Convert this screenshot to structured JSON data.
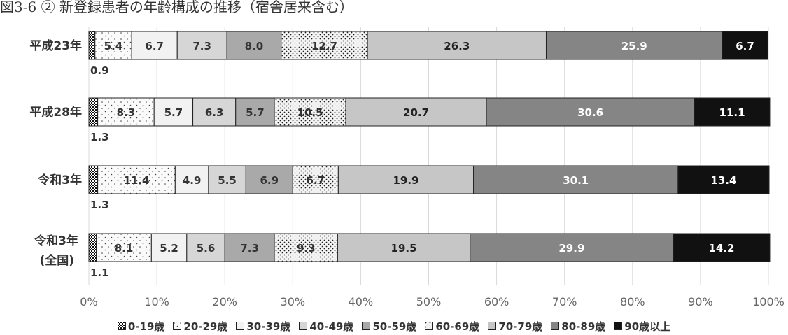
{
  "chart_data": {
    "type": "bar",
    "orientation": "horizontal",
    "stacked": true,
    "normalized_100": true,
    "title": "図3-6 ② 新登録患者の年齢構成の推移（宿舎居来含む）",
    "categories": [
      {
        "label": "平成23年",
        "label2": ""
      },
      {
        "label": "平成28年",
        "label2": ""
      },
      {
        "label": "令和3年",
        "label2": ""
      },
      {
        "label": "令和3年",
        "label2": "(全国)"
      }
    ],
    "series": [
      {
        "name": "0-19歳",
        "values": [
          0.9,
          1.3,
          1.3,
          1.1
        ],
        "color": "#e8e8e8",
        "pattern": "checker",
        "label_color": "#333333"
      },
      {
        "name": "20-29歳",
        "values": [
          5.4,
          8.3,
          11.4,
          8.1
        ],
        "color": "#fafafa",
        "pattern": "sparse-dots",
        "label_color": "#333333"
      },
      {
        "name": "30-39歳",
        "values": [
          6.7,
          5.7,
          4.9,
          5.2
        ],
        "color": "#f2f2f2",
        "pattern": "none",
        "label_color": "#333333"
      },
      {
        "name": "40-49歳",
        "values": [
          7.3,
          6.3,
          5.5,
          5.6
        ],
        "color": "#d6d6d6",
        "pattern": "none",
        "label_color": "#333333"
      },
      {
        "name": "50-59歳",
        "values": [
          8.0,
          5.7,
          6.9,
          7.3
        ],
        "color": "#a9a9a9",
        "pattern": "none",
        "label_color": "#333333"
      },
      {
        "name": "60-69歳",
        "values": [
          12.7,
          10.5,
          6.7,
          9.3
        ],
        "color": "#f4f4f4",
        "pattern": "dots",
        "label_color": "#333333"
      },
      {
        "name": "70-79歳",
        "values": [
          26.3,
          20.7,
          19.9,
          19.5
        ],
        "color": "#c6c6c6",
        "pattern": "none",
        "label_color": "#222222"
      },
      {
        "name": "80-89歳",
        "values": [
          25.9,
          30.6,
          30.1,
          29.9
        ],
        "color": "#858585",
        "pattern": "none",
        "label_color": "#ffffff"
      },
      {
        "name": "90歳以上",
        "values": [
          6.7,
          11.1,
          13.4,
          14.2
        ],
        "color": "#111111",
        "pattern": "none",
        "label_color": "#ffffff"
      }
    ],
    "xlim": [
      0,
      100
    ],
    "xticks": [
      "0%",
      "10%",
      "20%",
      "30%",
      "40%",
      "50%",
      "60%",
      "70%",
      "80%",
      "90%",
      "100%"
    ],
    "grid": "vertical",
    "legend": "bottom",
    "xlabel": "",
    "ylabel": ""
  }
}
